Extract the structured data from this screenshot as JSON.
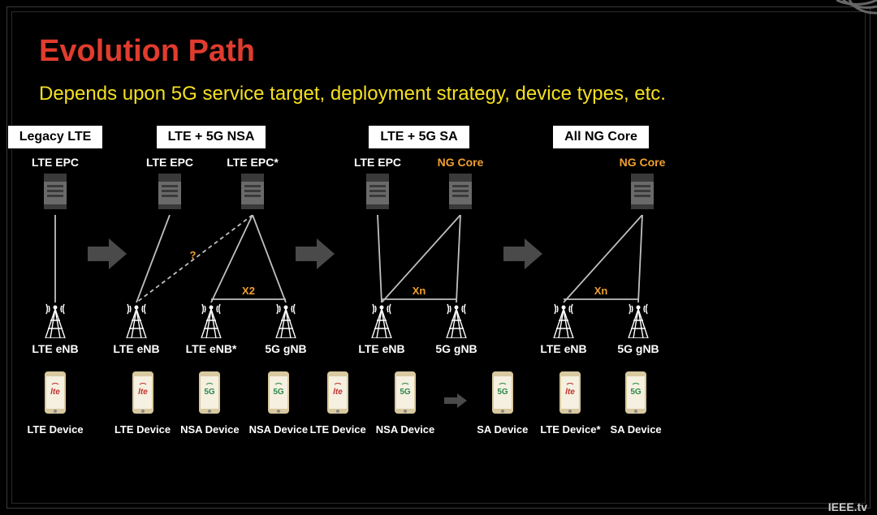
{
  "title": "Evolution Path",
  "subtitle": "Depends upon 5G service target, deployment strategy, device types, etc.",
  "watermark": "IEEE.tv",
  "colors": {
    "background": "#000000",
    "title": "#e03c2e",
    "subtitle": "#f5e020",
    "white": "#ffffff",
    "orange": "#f0a030",
    "arrow": "#4a4a4a",
    "server_body": "#6a6a6a",
    "server_dark": "#3a3a3a",
    "device_body": "#d9c9a0",
    "device_screen": "#f5f0e0",
    "line": "#c0c0c0"
  },
  "stages": [
    {
      "header": "Legacy LTE",
      "cores": [
        {
          "label": "LTE EPC",
          "accent": "white"
        }
      ],
      "towers": [
        {
          "label": "LTE eNB"
        }
      ],
      "devices": [
        {
          "logo": "lte",
          "label": "LTE Device"
        }
      ],
      "links": {
        "core_to_tower": [
          [
            0,
            0,
            "solid"
          ]
        ]
      }
    },
    {
      "header": "LTE + 5G NSA",
      "cores": [
        {
          "label": "LTE EPC",
          "accent": "white"
        },
        {
          "label": "LTE EPC*",
          "accent": "white"
        }
      ],
      "towers": [
        {
          "label": "LTE eNB"
        },
        {
          "label": "LTE eNB*"
        },
        {
          "label": "5G gNB"
        }
      ],
      "devices": [
        {
          "logo": "lte",
          "label": "LTE Device"
        },
        {
          "logo": "5g",
          "label": "NSA Device"
        },
        {
          "logo": "5g",
          "label": "NSA Device"
        }
      ],
      "links": {
        "core_to_tower": [
          [
            0,
            0,
            "solid"
          ],
          [
            1,
            1,
            "solid"
          ],
          [
            1,
            2,
            "solid"
          ]
        ],
        "dashed": [
          [
            1,
            0,
            "?"
          ]
        ],
        "tower_to_tower": [
          [
            1,
            2,
            "X2"
          ]
        ]
      }
    },
    {
      "header": "LTE + 5G SA",
      "cores": [
        {
          "label": "LTE EPC",
          "accent": "white"
        },
        {
          "label": "NG Core",
          "accent": "orange"
        }
      ],
      "towers": [
        {
          "label": "LTE eNB"
        },
        {
          "label": "5G gNB"
        }
      ],
      "devices": [
        {
          "logo": "lte",
          "label": "LTE Device"
        },
        {
          "logo": "5g",
          "label": "NSA Device"
        },
        {
          "arrow_then": true,
          "logo": "5g",
          "label": "SA Device"
        }
      ],
      "links": {
        "core_to_tower": [
          [
            0,
            0,
            "solid"
          ],
          [
            1,
            0,
            "solid"
          ],
          [
            1,
            1,
            "solid"
          ]
        ],
        "tower_to_tower": [
          [
            0,
            1,
            "Xn"
          ]
        ]
      }
    },
    {
      "header": "All NG Core",
      "cores": [
        {
          "label": "",
          "hidden_label": true
        },
        {
          "label": "NG Core",
          "accent": "orange"
        }
      ],
      "towers": [
        {
          "label": "LTE eNB"
        },
        {
          "label": "5G gNB"
        }
      ],
      "devices": [
        {
          "logo": "lte",
          "label": "LTE Device*"
        },
        {
          "logo": "5g",
          "label": "SA Device"
        }
      ],
      "links": {
        "core_to_tower": [
          [
            1,
            0,
            "solid"
          ],
          [
            1,
            1,
            "solid"
          ]
        ],
        "tower_to_tower": [
          [
            0,
            1,
            "Xn"
          ]
        ]
      },
      "single_core_visual": 1
    }
  ]
}
